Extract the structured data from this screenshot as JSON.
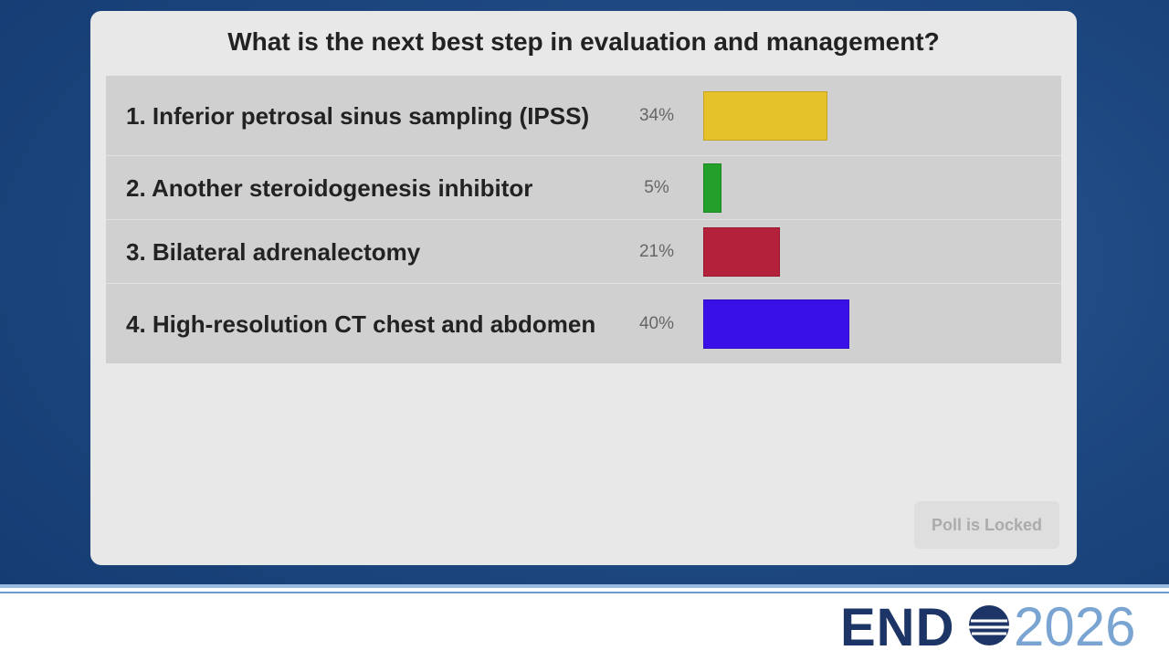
{
  "chart_data": {
    "type": "bar",
    "title": "What is the next best step in evaluation and management?",
    "categories": [
      "1. Inferior petrosal sinus sampling (IPSS)",
      "2. Another steroidogenesis inhibitor",
      "3. Bilateral adrenalectomy",
      "4. High-resolution CT chest and abdomen"
    ],
    "values": [
      34,
      5,
      21,
      40
    ],
    "value_labels": [
      "34%",
      "5%",
      "21%",
      "40%"
    ],
    "colors": [
      "#e6c22a",
      "#23a02a",
      "#b3213a",
      "#3a10e8"
    ]
  },
  "button": "Poll is Locked",
  "logo": {
    "brand": "END",
    "year": "2026"
  }
}
